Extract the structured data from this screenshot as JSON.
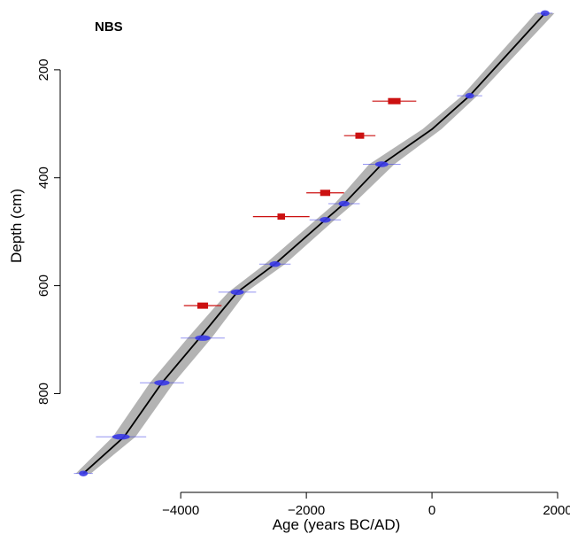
{
  "chart_data": {
    "type": "line",
    "title": "NBS",
    "xlabel": "Age (years BC/AD)",
    "ylabel": "Depth (cm)",
    "xlim": [
      -5750,
      2000
    ],
    "ylim": [
      965,
      87
    ],
    "y_reversed": true,
    "grid": false,
    "x_ticks": [
      -4000,
      -2000,
      0,
      2000
    ],
    "x_tick_labels": [
      "−4000",
      "−2000",
      "0",
      "2000"
    ],
    "y_ticks": [
      200,
      400,
      600,
      800
    ],
    "y_tick_labels": [
      "200",
      "400",
      "600",
      "800"
    ],
    "colors": {
      "model_line": "#000000",
      "uncertainty_band": "#9a9a9a",
      "dated_sample": "#3a3ae6",
      "outlier_sample": "#cc1111"
    },
    "age_model": {
      "points": [
        {
          "depth": 95,
          "age": 1800
        },
        {
          "depth": 248,
          "age": 600
        },
        {
          "depth": 310,
          "age": 0
        },
        {
          "depth": 375,
          "age": -800
        },
        {
          "depth": 448,
          "age": -1400
        },
        {
          "depth": 478,
          "age": -1700
        },
        {
          "depth": 560,
          "age": -2500
        },
        {
          "depth": 612,
          "age": -3100
        },
        {
          "depth": 640,
          "age": -3300
        },
        {
          "depth": 697,
          "age": -3700
        },
        {
          "depth": 780,
          "age": -4300
        },
        {
          "depth": 880,
          "age": -4900
        },
        {
          "depth": 948,
          "age": -5550
        }
      ],
      "band_half_width": [
        150,
        120,
        150,
        200,
        150,
        150,
        160,
        140,
        160,
        190,
        190,
        180,
        120
      ]
    },
    "dated_samples": [
      {
        "depth": 95,
        "age": 1800,
        "err": 120
      },
      {
        "depth": 248,
        "age": 600,
        "err": 200
      },
      {
        "depth": 375,
        "age": -800,
        "err": 300
      },
      {
        "depth": 448,
        "age": -1400,
        "err": 250
      },
      {
        "depth": 478,
        "age": -1700,
        "err": 250
      },
      {
        "depth": 560,
        "age": -2500,
        "err": 250
      },
      {
        "depth": 612,
        "age": -3100,
        "err": 300
      },
      {
        "depth": 697,
        "age": -3650,
        "err": 350
      },
      {
        "depth": 780,
        "age": -4300,
        "err": 350
      },
      {
        "depth": 880,
        "age": -4950,
        "err": 400
      },
      {
        "depth": 948,
        "age": -5550,
        "err": 150
      }
    ],
    "outlier_samples": [
      {
        "depth": 258,
        "age": -600,
        "err": 350,
        "core": 200
      },
      {
        "depth": 322,
        "age": -1150,
        "err": 250,
        "core": 140
      },
      {
        "depth": 428,
        "age": -1700,
        "err": 300,
        "core": 160
      },
      {
        "depth": 472,
        "age": -2400,
        "err": 450,
        "core": 120
      },
      {
        "depth": 637,
        "age": -3650,
        "err": 300,
        "core": 170
      }
    ]
  }
}
